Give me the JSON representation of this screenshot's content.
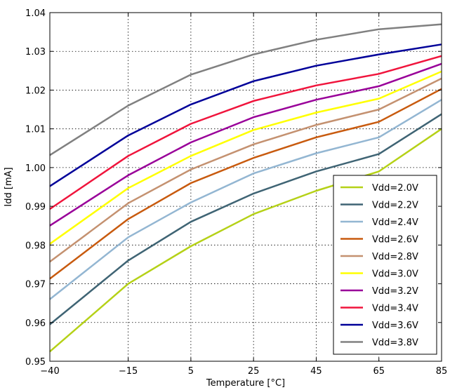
{
  "chart_data": {
    "type": "line",
    "title": "",
    "xlabel": "Temperature [°C]",
    "ylabel": "Idd [mA]",
    "x": [
      -40,
      -15,
      5,
      25,
      45,
      65,
      85
    ],
    "x_ticks": [
      "−40",
      "−15",
      "5",
      "25",
      "45",
      "65",
      "85"
    ],
    "xlim": [
      -40,
      85
    ],
    "ylim": [
      0.95,
      1.04
    ],
    "y_ticks": [
      "0.95",
      "0.96",
      "0.97",
      "0.98",
      "0.99",
      "1.00",
      "1.01",
      "1.02",
      "1.03",
      "1.04"
    ],
    "grid": true,
    "legend_position": "lower-right",
    "series": [
      {
        "name": "Vdd=2.0V",
        "color": "#b5d117",
        "values": [
          0.9525,
          0.97,
          0.9797,
          0.988,
          0.994,
          0.999,
          1.01
        ]
      },
      {
        "name": "Vdd=2.2V",
        "color": "#3f6474",
        "values": [
          0.9595,
          0.976,
          0.986,
          0.9933,
          0.999,
          1.0035,
          1.0138
        ]
      },
      {
        "name": "Vdd=2.4V",
        "color": "#93b6d2",
        "values": [
          0.966,
          0.982,
          0.991,
          0.9985,
          1.0037,
          1.0078,
          1.0175
        ]
      },
      {
        "name": "Vdd=2.6V",
        "color": "#c85a0e",
        "values": [
          0.9713,
          0.9867,
          0.996,
          1.0025,
          1.0078,
          1.0118,
          1.0203
        ]
      },
      {
        "name": "Vdd=2.8V",
        "color": "#c49170",
        "values": [
          0.9757,
          0.9908,
          0.9995,
          1.006,
          1.011,
          1.015,
          1.023
        ]
      },
      {
        "name": "Vdd=3.0V",
        "color": "#ffff00",
        "values": [
          0.9803,
          0.9947,
          1.003,
          1.0097,
          1.0142,
          1.0178,
          1.0248
        ]
      },
      {
        "name": "Vdd=3.2V",
        "color": "#990099",
        "values": [
          0.985,
          0.998,
          1.0065,
          1.013,
          1.0175,
          1.021,
          1.0268
        ]
      },
      {
        "name": "Vdd=3.4V",
        "color": "#f0143c",
        "values": [
          0.9893,
          1.003,
          1.0113,
          1.0172,
          1.0212,
          1.0242,
          1.0288
        ]
      },
      {
        "name": "Vdd=3.6V",
        "color": "#000099",
        "values": [
          0.9952,
          1.0083,
          1.0163,
          1.0223,
          1.0263,
          1.0292,
          1.0318
        ]
      },
      {
        "name": "Vdd=3.8V",
        "color": "#808080",
        "values": [
          1.0032,
          1.016,
          1.024,
          1.0292,
          1.033,
          1.0357,
          1.037
        ]
      }
    ]
  }
}
